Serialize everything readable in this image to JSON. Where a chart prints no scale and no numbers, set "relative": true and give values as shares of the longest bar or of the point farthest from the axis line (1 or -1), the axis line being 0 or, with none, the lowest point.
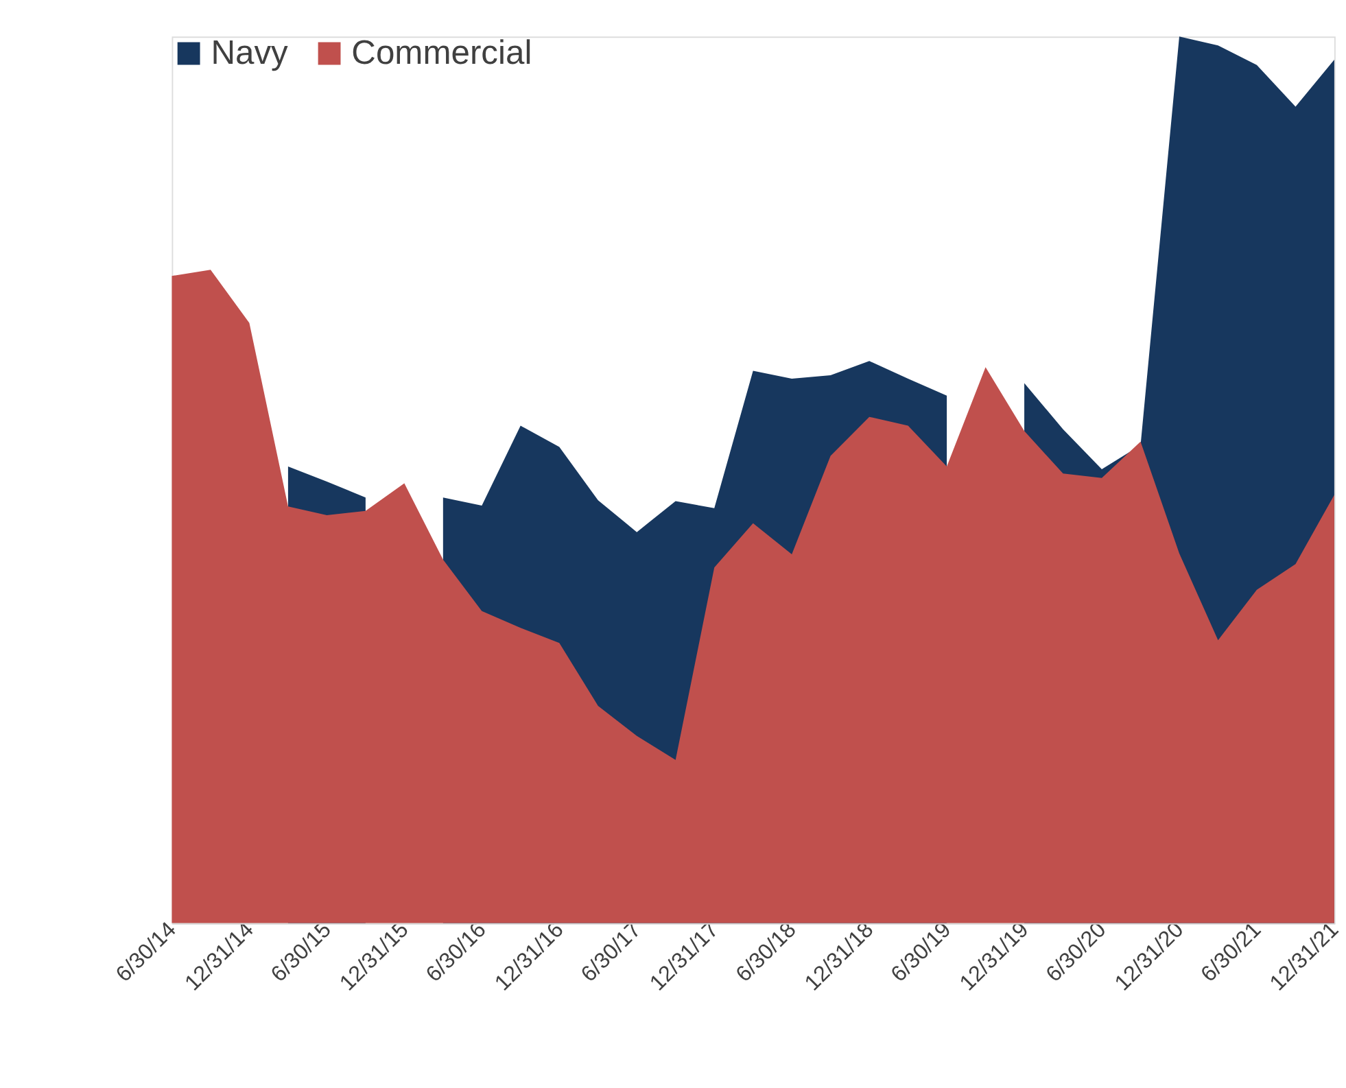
{
  "chart_data": {
    "type": "area",
    "relative": true,
    "legend": "top left",
    "grid": false,
    "categories": [
      "6/30/14",
      null,
      "12/31/14",
      null,
      "6/30/15",
      null,
      "12/31/15",
      null,
      "6/30/16",
      null,
      "12/31/16",
      null,
      "6/30/17",
      null,
      "12/31/17",
      null,
      "6/30/18",
      null,
      "12/31/18",
      null,
      "6/30/19",
      null,
      "12/31/19",
      null,
      "6/30/20",
      null,
      "12/31/20",
      null,
      "6/30/21",
      null,
      "12/31/21"
    ],
    "series": [
      {
        "name": "Navy",
        "color": "#17375e",
        "values": [
          null,
          null,
          null,
          0.515,
          0.498,
          0.48,
          null,
          0.48,
          0.471,
          0.561,
          0.537,
          0.477,
          0.441,
          0.476,
          0.468,
          0.623,
          0.614,
          0.618,
          0.634,
          0.614,
          0.595,
          null,
          0.609,
          0.557,
          0.512,
          0.539,
          1,
          0.99,
          0.968,
          0.921,
          0.974
        ]
      },
      {
        "name": "Commercial",
        "color": "#c0504d",
        "values": [
          0.73,
          0.737,
          0.677,
          0.47,
          0.46,
          0.465,
          0.496,
          0.41,
          0.352,
          0.333,
          0.316,
          0.245,
          0.211,
          0.184,
          0.401,
          0.451,
          0.416,
          0.527,
          0.571,
          0.561,
          0.515,
          0.627,
          0.555,
          0.507,
          0.502,
          0.543,
          0.417,
          0.319,
          0.376,
          0.405,
          0.483
        ]
      }
    ]
  }
}
